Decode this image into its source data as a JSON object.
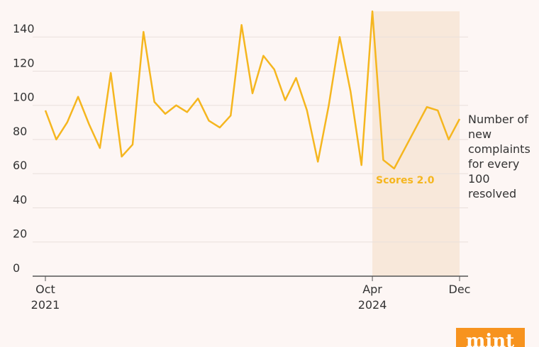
{
  "chart_data": {
    "type": "line",
    "categories": [
      "Oct 2021",
      null,
      null,
      null,
      null,
      null,
      null,
      null,
      null,
      null,
      null,
      null,
      null,
      null,
      null,
      null,
      null,
      null,
      null,
      null,
      null,
      null,
      null,
      null,
      null,
      null,
      null,
      null,
      null,
      null,
      "Apr 2024",
      null,
      null,
      null,
      null,
      null,
      null,
      null,
      "Dec"
    ],
    "series": [
      {
        "color": "#f5b61f",
        "values": [
          97,
          80,
          90,
          105,
          89,
          75,
          119,
          70,
          77,
          143,
          102,
          95,
          100,
          96,
          104,
          91,
          87,
          94,
          147,
          107,
          129,
          121,
          103,
          116,
          97,
          67,
          100,
          140,
          108,
          65,
          155,
          68,
          63,
          75,
          87,
          99,
          97,
          80,
          92
        ]
      }
    ],
    "ylim": [
      0,
      155
    ],
    "yticks": [
      0,
      20,
      40,
      60,
      80,
      100,
      120,
      140
    ],
    "grid": true,
    "y_label": "Number of new complaints for every 100 resolved",
    "highlight": {
      "start": "Apr 2024",
      "end": "Dec",
      "label": "Scores 2.0",
      "color": "#f8e8da"
    },
    "logo": "mint"
  }
}
